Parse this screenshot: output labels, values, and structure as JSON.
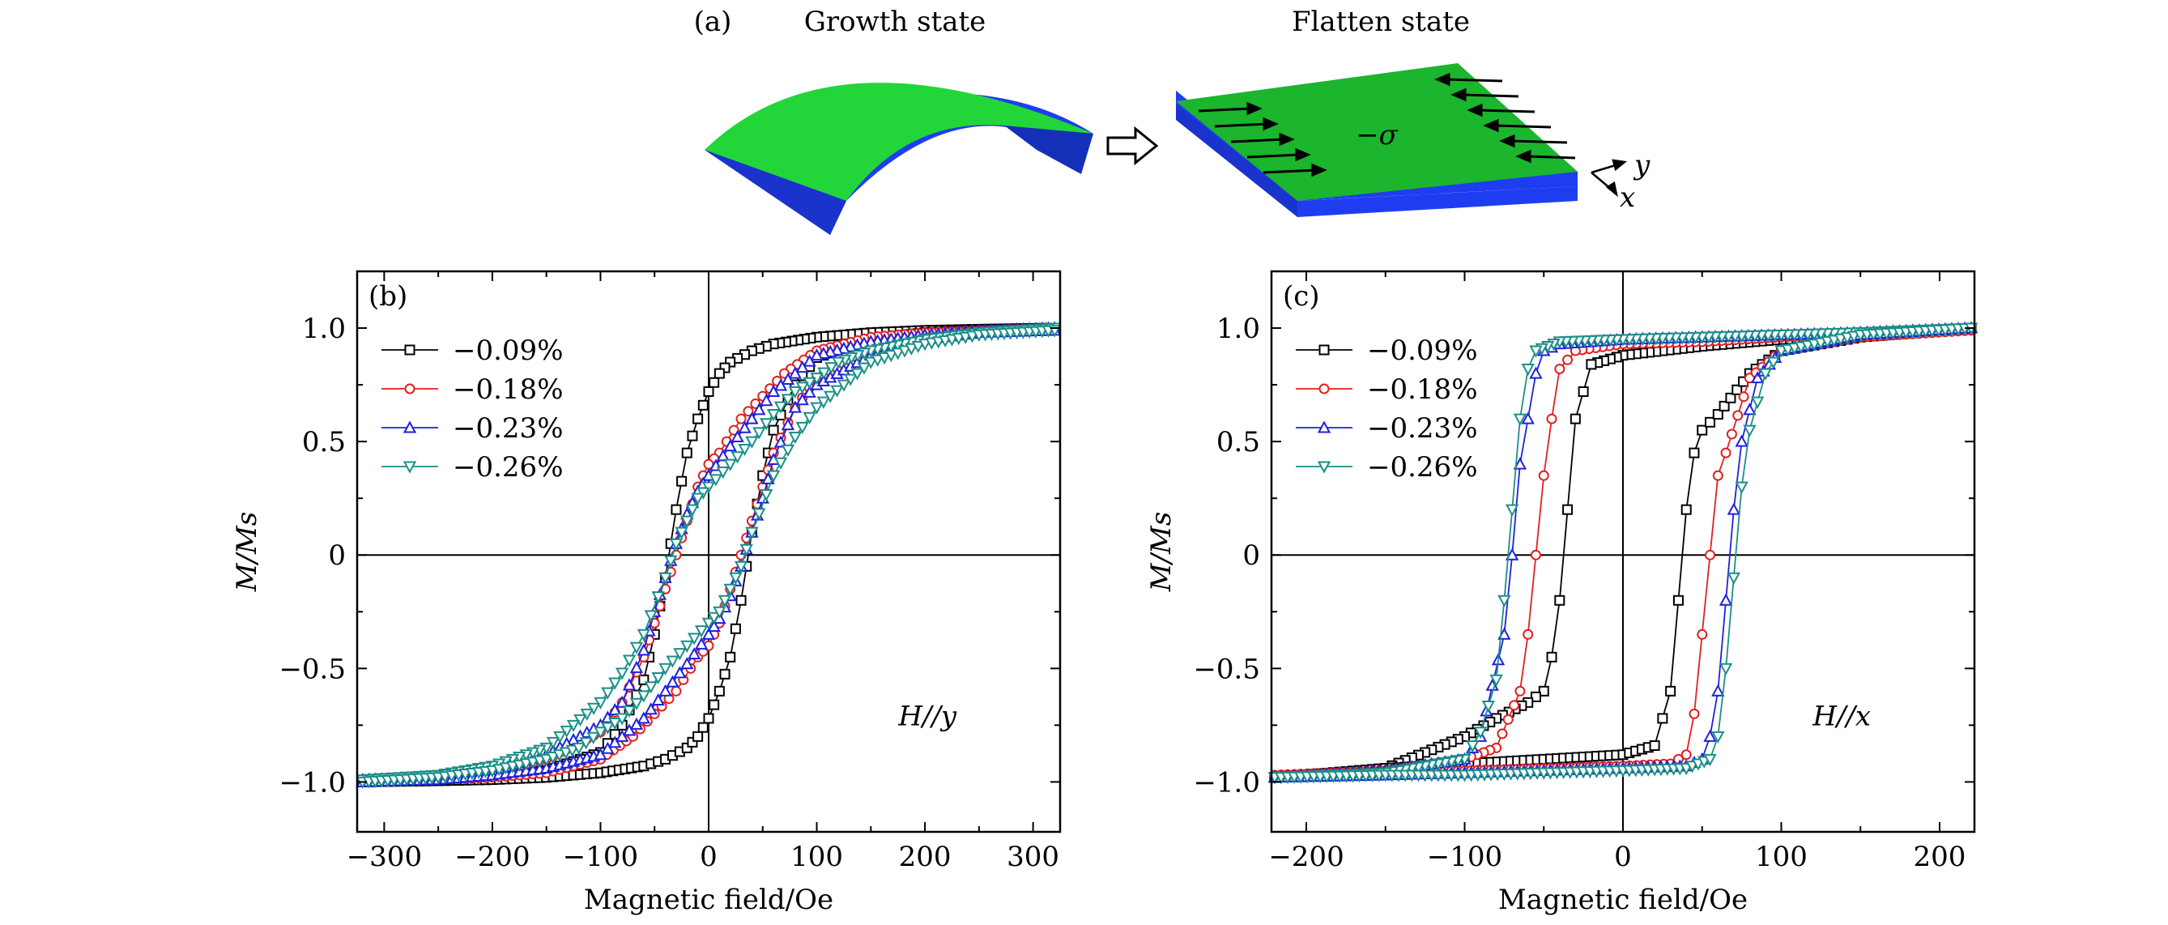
{
  "figure": {
    "panel_a_label": "(a)",
    "growth_title": "Growth state",
    "flatten_title": "Flatten state",
    "stress_label": "−σ",
    "axis_y_label": "y",
    "axis_x_label": "x"
  },
  "colors": {
    "green": "#22d63a",
    "green_dark": "#1bb52e",
    "blue": "#1f3df0",
    "blue_dark": "#1530b8",
    "s1": "#000000",
    "s2": "#e0201f",
    "s3": "#1f1fe0",
    "s4": "#1a8f87"
  },
  "chart_data": [
    {
      "type": "line",
      "panel_label": "(b)",
      "annotation": "H//y",
      "xlabel": "Magnetic field/Oe",
      "ylabel": "M/Ms",
      "xlim": [
        -325,
        325
      ],
      "ylim": [
        -1.22,
        1.25
      ],
      "xticks": [
        -300,
        -200,
        -100,
        0,
        100,
        200,
        300
      ],
      "xtick_labels": [
        "−300",
        "−200",
        "−100",
        "0",
        "100",
        "200",
        "300"
      ],
      "yticks": [
        -1.0,
        -0.5,
        0,
        0.5,
        1.0
      ],
      "ytick_labels": [
        "−1.0",
        "−0.5",
        "0",
        "0.5",
        "1.0"
      ],
      "grid": false,
      "legend_position": "top-left",
      "series": [
        {
          "name": "−0.09%",
          "marker": "square",
          "color": "#000000",
          "descending": {
            "x": [
              320,
              250,
              200,
              150,
              100,
              60,
              40,
              20,
              10,
              0,
              -10,
              -20,
              -30,
              -40,
              -50,
              -60,
              -80,
              -100,
              -150,
              -200,
              -250,
              -320
            ],
            "y": [
              1.0,
              0.995,
              0.99,
              0.98,
              0.96,
              0.93,
              0.9,
              0.85,
              0.8,
              0.72,
              0.6,
              0.45,
              0.2,
              -0.1,
              -0.35,
              -0.55,
              -0.75,
              -0.87,
              -0.95,
              -0.98,
              -0.99,
              -1.0
            ]
          },
          "ascending": {
            "x": [
              -320,
              -250,
              -200,
              -150,
              -100,
              -60,
              -40,
              -20,
              -10,
              0,
              10,
              20,
              30,
              40,
              50,
              60,
              80,
              100,
              150,
              200,
              250,
              320
            ],
            "y": [
              -1.0,
              -0.995,
              -0.99,
              -0.98,
              -0.96,
              -0.93,
              -0.9,
              -0.85,
              -0.8,
              -0.72,
              -0.6,
              -0.45,
              -0.2,
              0.1,
              0.35,
              0.55,
              0.75,
              0.87,
              0.95,
              0.98,
              0.99,
              1.0
            ]
          }
        },
        {
          "name": "−0.18%",
          "marker": "circle",
          "color": "#e0201f",
          "descending": {
            "x": [
              320,
              250,
              200,
              150,
              100,
              70,
              50,
              30,
              10,
              0,
              -10,
              -20,
              -30,
              -40,
              -50,
              -60,
              -80,
              -100,
              -150,
              -200,
              -250,
              -320
            ],
            "y": [
              1.0,
              0.99,
              0.98,
              0.96,
              0.9,
              0.8,
              0.7,
              0.6,
              0.45,
              0.4,
              0.3,
              0.15,
              0.0,
              -0.15,
              -0.3,
              -0.45,
              -0.65,
              -0.78,
              -0.9,
              -0.96,
              -0.98,
              -0.99
            ]
          },
          "ascending": {
            "x": [
              -320,
              -250,
              -200,
              -150,
              -100,
              -70,
              -50,
              -30,
              -10,
              0,
              10,
              20,
              30,
              40,
              50,
              60,
              80,
              100,
              150,
              200,
              250,
              320
            ],
            "y": [
              -1.0,
              -0.99,
              -0.98,
              -0.96,
              -0.9,
              -0.8,
              -0.7,
              -0.6,
              -0.45,
              -0.4,
              -0.3,
              -0.15,
              0.0,
              0.15,
              0.3,
              0.45,
              0.65,
              0.78,
              0.9,
              0.96,
              0.98,
              0.99
            ]
          }
        },
        {
          "name": "−0.23%",
          "marker": "triangle-up",
          "color": "#1f1fe0",
          "descending": {
            "x": [
              320,
              250,
              200,
              150,
              100,
              80,
              60,
              40,
              20,
              0,
              -10,
              -20,
              -30,
              -40,
              -50,
              -60,
              -80,
              -100,
              -150,
              -200,
              -250,
              -320
            ],
            "y": [
              1.0,
              0.99,
              0.97,
              0.94,
              0.88,
              0.8,
              0.72,
              0.6,
              0.48,
              0.35,
              0.28,
              0.18,
              0.05,
              -0.1,
              -0.25,
              -0.42,
              -0.65,
              -0.75,
              -0.88,
              -0.95,
              -0.98,
              -0.99
            ]
          },
          "ascending": {
            "x": [
              -320,
              -250,
              -200,
              -150,
              -100,
              -80,
              -60,
              -40,
              -20,
              0,
              10,
              20,
              30,
              40,
              50,
              60,
              80,
              100,
              150,
              200,
              250,
              320
            ],
            "y": [
              -1.0,
              -0.99,
              -0.97,
              -0.94,
              -0.88,
              -0.8,
              -0.72,
              -0.6,
              -0.48,
              -0.35,
              -0.28,
              -0.18,
              -0.05,
              0.1,
              0.25,
              0.42,
              0.65,
              0.75,
              0.88,
              0.95,
              0.98,
              0.99
            ]
          }
        },
        {
          "name": "−0.26%",
          "marker": "triangle-down",
          "color": "#1a8f87",
          "descending": {
            "x": [
              320,
              250,
              200,
              150,
              120,
              100,
              80,
              60,
              40,
              20,
              0,
              -10,
              -20,
              -30,
              -40,
              -60,
              -80,
              -100,
              -150,
              -200,
              -250,
              -320
            ],
            "y": [
              1.0,
              0.98,
              0.95,
              0.9,
              0.85,
              0.78,
              0.72,
              0.62,
              0.5,
              0.4,
              0.3,
              0.25,
              0.15,
              0.05,
              -0.1,
              -0.35,
              -0.52,
              -0.65,
              -0.85,
              -0.93,
              -0.97,
              -0.99
            ]
          },
          "ascending": {
            "x": [
              -320,
              -250,
              -200,
              -150,
              -120,
              -100,
              -80,
              -60,
              -40,
              -20,
              0,
              10,
              20,
              30,
              40,
              60,
              80,
              100,
              150,
              200,
              250,
              320
            ],
            "y": [
              -1.0,
              -0.98,
              -0.95,
              -0.9,
              -0.85,
              -0.78,
              -0.72,
              -0.62,
              -0.5,
              -0.4,
              -0.3,
              -0.25,
              -0.15,
              -0.05,
              0.1,
              0.35,
              0.52,
              0.65,
              0.85,
              0.93,
              0.97,
              0.99
            ]
          }
        }
      ]
    },
    {
      "type": "line",
      "panel_label": "(c)",
      "annotation": "H//x",
      "xlabel": "Magnetic field/Oe",
      "ylabel": "M/Ms",
      "xlim": [
        -222,
        222
      ],
      "ylim": [
        -1.22,
        1.25
      ],
      "xticks": [
        -200,
        -100,
        0,
        100,
        200
      ],
      "xtick_labels": [
        "−200",
        "−100",
        "0",
        "100",
        "200"
      ],
      "yticks": [
        -1.0,
        -0.5,
        0,
        0.5,
        1.0
      ],
      "ytick_labels": [
        "−1.0",
        "−0.5",
        "0",
        "0.5",
        "1.0"
      ],
      "grid": false,
      "legend_position": "top-left",
      "series": [
        {
          "name": "−0.09%",
          "marker": "square",
          "color": "#000000",
          "descending": {
            "x": [
              220,
              150,
              100,
              50,
              0,
              -20,
              -30,
              -35,
              -40,
              -45,
              -50,
              -60,
              -80,
              -100,
              -150,
              -220
            ],
            "y": [
              1.0,
              0.97,
              0.95,
              0.92,
              0.88,
              0.84,
              0.6,
              0.2,
              -0.2,
              -0.45,
              -0.6,
              -0.65,
              -0.72,
              -0.8,
              -0.94,
              -0.98
            ]
          },
          "ascending": {
            "x": [
              -220,
              -150,
              -100,
              -50,
              0,
              20,
              30,
              35,
              40,
              45,
              50,
              60,
              80,
              100,
              150,
              220
            ],
            "y": [
              -0.98,
              -0.94,
              -0.92,
              -0.9,
              -0.88,
              -0.84,
              -0.6,
              -0.2,
              0.2,
              0.45,
              0.55,
              0.62,
              0.8,
              0.9,
              0.96,
              1.0
            ]
          }
        },
        {
          "name": "−0.18%",
          "marker": "circle",
          "color": "#e0201f",
          "descending": {
            "x": [
              220,
              150,
              100,
              50,
              0,
              -30,
              -40,
              -45,
              -50,
              -55,
              -60,
              -65,
              -80,
              -100,
              -150,
              -220
            ],
            "y": [
              1.0,
              0.98,
              0.96,
              0.94,
              0.93,
              0.9,
              0.82,
              0.6,
              0.35,
              0.0,
              -0.35,
              -0.6,
              -0.85,
              -0.9,
              -0.95,
              -0.97
            ]
          },
          "ascending": {
            "x": [
              -220,
              -150,
              -100,
              -50,
              0,
              30,
              40,
              45,
              50,
              55,
              60,
              65,
              80,
              100,
              150,
              220
            ],
            "y": [
              -0.97,
              -0.96,
              -0.95,
              -0.94,
              -0.93,
              -0.92,
              -0.88,
              -0.7,
              -0.35,
              0.0,
              0.35,
              0.45,
              0.78,
              0.9,
              0.96,
              0.99
            ]
          }
        },
        {
          "name": "−0.23%",
          "marker": "triangle-up",
          "color": "#1f1fe0",
          "descending": {
            "x": [
              220,
              150,
              100,
              50,
              0,
              -40,
              -50,
              -55,
              -60,
              -65,
              -70,
              -75,
              -90,
              -100,
              -150,
              -220
            ],
            "y": [
              1.0,
              0.98,
              0.97,
              0.96,
              0.95,
              0.93,
              0.9,
              0.8,
              0.6,
              0.4,
              0.0,
              -0.35,
              -0.8,
              -0.9,
              -0.95,
              -0.98
            ]
          },
          "ascending": {
            "x": [
              -220,
              -150,
              -100,
              -50,
              0,
              40,
              50,
              55,
              60,
              65,
              70,
              75,
              85,
              100,
              150,
              220
            ],
            "y": [
              -0.98,
              -0.97,
              -0.96,
              -0.95,
              -0.94,
              -0.93,
              -0.9,
              -0.8,
              -0.6,
              -0.2,
              0.2,
              0.5,
              0.78,
              0.9,
              0.97,
              1.0
            ]
          }
        },
        {
          "name": "−0.26%",
          "marker": "triangle-down",
          "color": "#1a8f87",
          "descending": {
            "x": [
              220,
              150,
              100,
              50,
              0,
              -40,
              -55,
              -60,
              -65,
              -70,
              -75,
              -80,
              -90,
              -100,
              -150,
              -220
            ],
            "y": [
              1.0,
              0.98,
              0.97,
              0.96,
              0.95,
              0.94,
              0.9,
              0.82,
              0.6,
              0.2,
              -0.2,
              -0.55,
              -0.78,
              -0.9,
              -0.96,
              -0.98
            ]
          },
          "ascending": {
            "x": [
              -220,
              -150,
              -100,
              -50,
              0,
              40,
              55,
              60,
              65,
              70,
              75,
              80,
              90,
              100,
              150,
              220
            ],
            "y": [
              -0.98,
              -0.97,
              -0.97,
              -0.96,
              -0.95,
              -0.94,
              -0.9,
              -0.8,
              -0.5,
              -0.1,
              0.3,
              0.55,
              0.8,
              0.9,
              0.97,
              1.0
            ]
          }
        }
      ]
    }
  ]
}
